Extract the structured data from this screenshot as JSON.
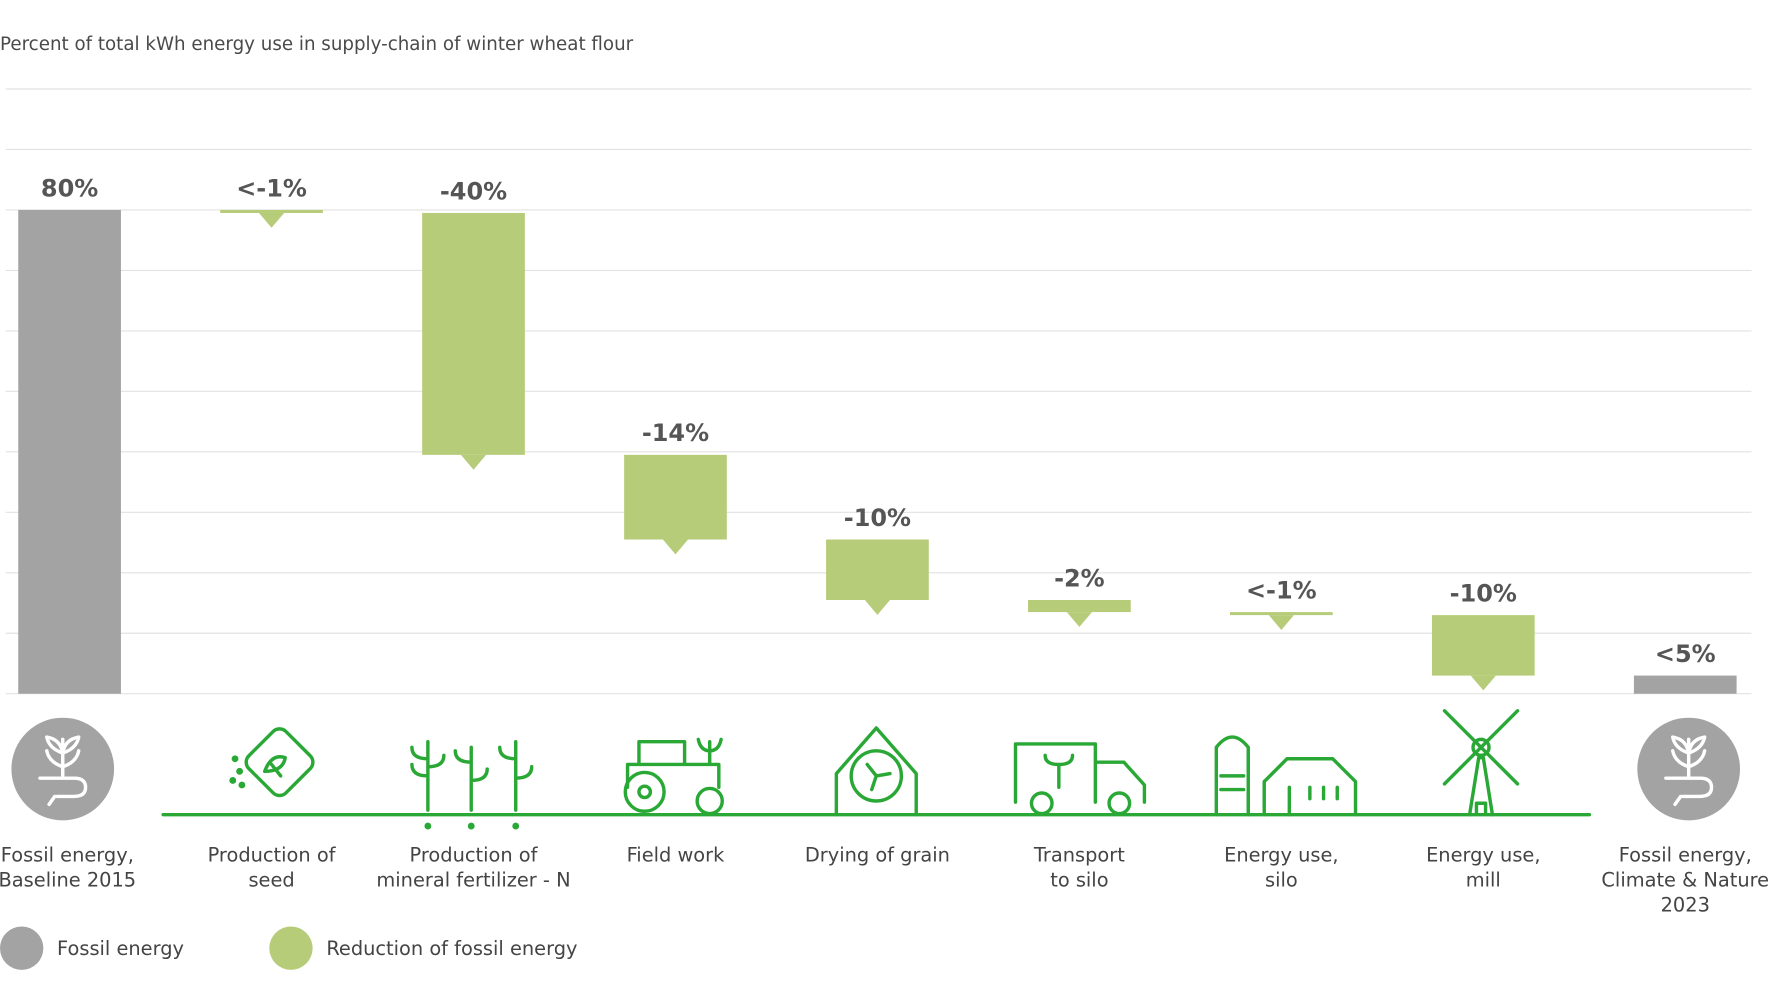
{
  "chart_data": {
    "type": "waterfall",
    "title": "Percent of total kWh energy use in supply-chain of winter wheat flour",
    "categories": [
      [
        "Fossil energy,",
        "Baseline 2015"
      ],
      [
        "Production of",
        "seed"
      ],
      [
        "Production of",
        "mineral fertilizer - N"
      ],
      [
        "Field work"
      ],
      [
        "Drying of grain"
      ],
      [
        "Transport",
        "to silo"
      ],
      [
        "Energy use,",
        "silo"
      ],
      [
        "Energy use,",
        "mill"
      ],
      [
        "Fossil energy,",
        "Climate & Nature",
        "2023"
      ]
    ],
    "measures": [
      "total",
      "relative",
      "relative",
      "relative",
      "relative",
      "relative",
      "relative",
      "relative",
      "total"
    ],
    "values": [
      80,
      -0.5,
      -40,
      -14,
      -10,
      -2,
      -0.5,
      -10,
      3
    ],
    "value_labels": [
      "80%",
      "<-1%",
      "-40%",
      "-14%",
      "-10%",
      "-2%",
      "<-1%",
      "-10%",
      "<5%"
    ],
    "legend": [
      {
        "name": "Fossil energy",
        "color": "#a3a3a3"
      },
      {
        "name": "Reduction of fossil energy",
        "color": "#b6cc79"
      }
    ],
    "ylim": [
      0,
      100
    ],
    "yticks": [
      0,
      10,
      20,
      30,
      40,
      50,
      60,
      70,
      80,
      90,
      100
    ],
    "grid": true
  }
}
